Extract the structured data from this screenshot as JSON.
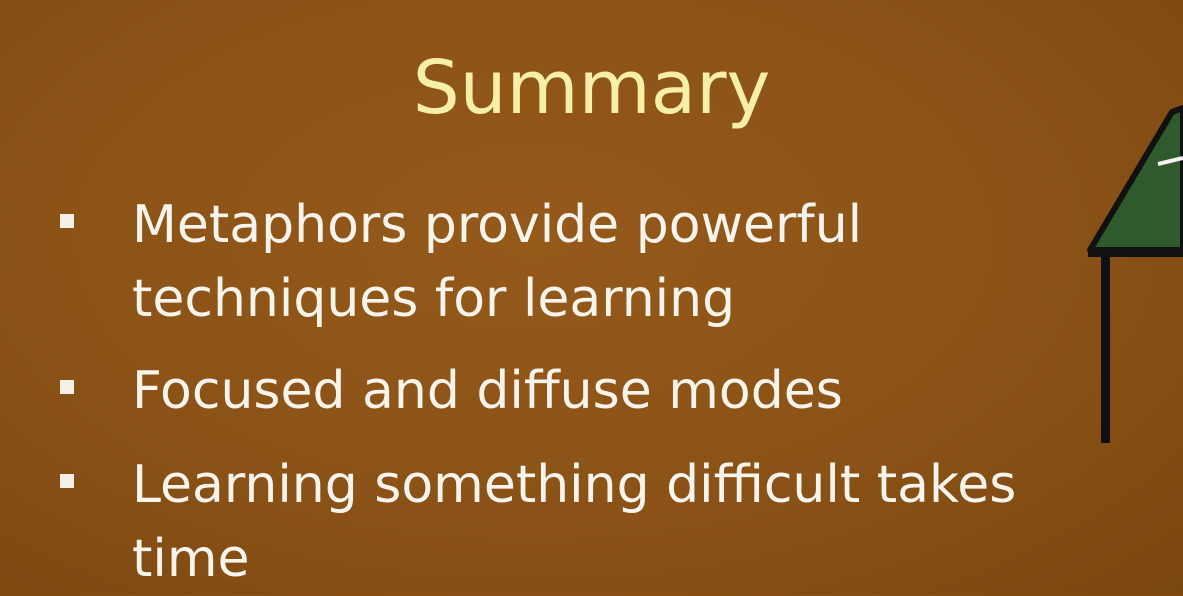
{
  "slide": {
    "title": "Summary",
    "bullets": [
      {
        "lines": [
          "Metaphors provide powerful",
          "techniques for learning"
        ]
      },
      {
        "lines": [
          "Focused and diffuse modes"
        ]
      },
      {
        "lines": [
          "Learning something difficult takes",
          "time"
        ]
      }
    ]
  },
  "colors": {
    "background": "#8a5216",
    "title": "#f7efa8",
    "text": "#f7f4ee",
    "table_top": "#2f5b2c",
    "table_outline": "#111111"
  },
  "decorations": {
    "right_edge_art": "ping-pong-table-icon"
  }
}
